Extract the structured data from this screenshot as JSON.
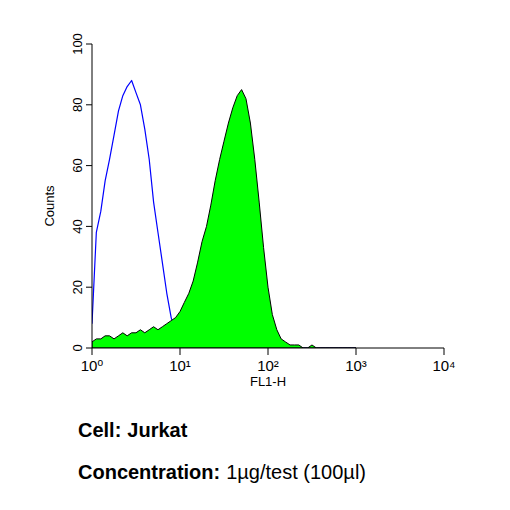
{
  "chart_data": {
    "type": "histogram",
    "x_label": "FL1-H",
    "y_label": "Counts",
    "log": "x",
    "xlim": [
      1,
      10000
    ],
    "ylim": [
      0,
      100
    ],
    "xticks": [
      {
        "value": 1,
        "label": "10⁰"
      },
      {
        "value": 10,
        "label": "10¹"
      },
      {
        "value": 100,
        "label": "10²"
      },
      {
        "value": 1000,
        "label": "10³"
      },
      {
        "value": 10000,
        "label": "10⁴"
      }
    ],
    "yticks": [
      0,
      20,
      40,
      60,
      80,
      100
    ],
    "x": [
      1,
      1.12,
      1.26,
      1.41,
      1.58,
      1.78,
      2,
      2.24,
      2.51,
      2.82,
      3.16,
      3.55,
      3.98,
      4.47,
      5.01,
      5.62,
      6.31,
      7.08,
      7.94,
      8.91,
      10,
      11.2,
      12.6,
      14.1,
      15.8,
      17.8,
      20,
      22.4,
      25.1,
      28.2,
      31.6,
      35.5,
      39.8,
      44.7,
      50.1,
      56.2,
      63.1,
      70.8,
      79.4,
      89.1,
      100,
      112,
      126,
      141,
      158,
      178,
      200,
      224,
      251,
      282,
      316,
      355,
      398,
      447,
      501,
      562,
      631,
      708,
      794,
      891,
      1000
    ],
    "series": [
      {
        "type": "line",
        "color": "#0000ff",
        "values": [
          8,
          38,
          45,
          55,
          62,
          70,
          78,
          83,
          86,
          88,
          84,
          80,
          72,
          62,
          48,
          38,
          28,
          18,
          10,
          5,
          2,
          1,
          0,
          0,
          0,
          0,
          0,
          0,
          0,
          0,
          0,
          0,
          0,
          0,
          0,
          0,
          0,
          0,
          0,
          0,
          0,
          0,
          0,
          0,
          0,
          0,
          0,
          0,
          0,
          0,
          0,
          0,
          0,
          0,
          0,
          0,
          0,
          0,
          0,
          0,
          0
        ]
      },
      {
        "type": "area",
        "color": "#00ff00",
        "values": [
          2,
          3,
          3,
          4,
          4,
          3,
          4,
          5,
          4,
          5,
          5,
          6,
          5,
          6,
          7,
          6,
          7,
          8,
          9,
          10,
          12,
          15,
          18,
          22,
          28,
          35,
          40,
          47,
          55,
          62,
          68,
          74,
          79,
          83,
          85,
          82,
          74,
          62,
          48,
          33,
          20,
          11,
          6,
          3,
          2,
          1,
          1,
          1,
          0,
          0,
          1,
          0,
          0,
          0,
          0,
          0,
          0,
          0,
          0,
          0,
          0
        ]
      }
    ],
    "annotations": [
      {
        "label": "Cell:",
        "text": "Jurkat"
      },
      {
        "label": "Concentration:",
        "text": "1µg/test (100µl)"
      }
    ]
  }
}
